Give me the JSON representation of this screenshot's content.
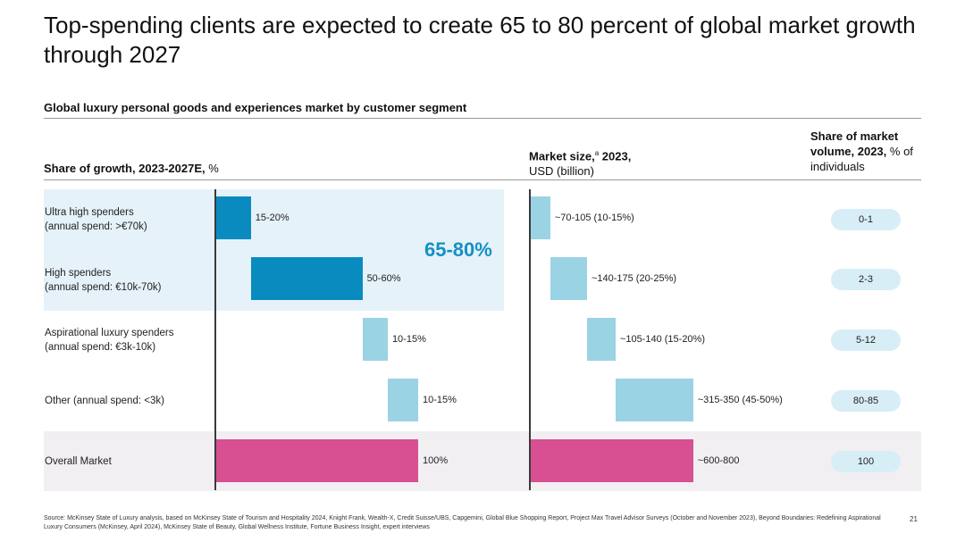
{
  "title": "Top-spending clients are expected to create 65 to 80 percent of global market growth through 2027",
  "chart_data": {
    "type": "bar",
    "title": "Global luxury personal goods and experiences market by customer segment",
    "columns": {
      "growth": {
        "label_bold": "Share of growth, 2023-2027E,",
        "label_rest": " %"
      },
      "market": {
        "label_bold": "Market size,",
        "label_sup": "a",
        "label_bold2": " 2023,",
        "label_rest": "USD (billion)"
      },
      "volume": {
        "label_bold": "Share of market volume, 2023,",
        "label_rest": " % of individuals"
      }
    },
    "highlight_label": "65-80%",
    "categories": [
      {
        "line1": "Ultra high spenders",
        "line2": "(annual spend: >€70k)"
      },
      {
        "line1": "High spenders",
        "line2": "(annual spend: €10k-70k)"
      },
      {
        "line1": "Aspirational luxury spenders",
        "line2": "(annual spend: €3k-10k)"
      },
      {
        "line1": "Other (annual spend: <3k)",
        "line2": ""
      },
      {
        "line1": "Overall Market",
        "line2": ""
      }
    ],
    "series": [
      {
        "name": "Share of growth",
        "type": "waterfall",
        "ranges": [
          [
            0,
            17.5
          ],
          [
            17.5,
            72.5
          ],
          [
            72.5,
            85
          ],
          [
            85,
            100
          ],
          [
            0,
            100
          ]
        ],
        "labels": [
          "15-20%",
          "50-60%",
          "10-15%",
          "10-15%",
          "100%"
        ]
      },
      {
        "name": "Market size",
        "type": "waterfall",
        "ranges": [
          [
            0,
            87.5
          ],
          [
            87.5,
            245
          ],
          [
            245,
            367.5
          ],
          [
            367.5,
            700
          ],
          [
            0,
            700
          ]
        ],
        "labels": [
          "~70-105 (10-15%)",
          "~140-175 (20-25%)",
          "~105-140 (15-20%)",
          "~315-350 (45-50%)",
          "~600-800"
        ]
      },
      {
        "name": "Share of market volume",
        "type": "table",
        "labels": [
          "0-1",
          "2-3",
          "5-12",
          "80-85",
          "100"
        ]
      }
    ]
  },
  "colors": {
    "dark_blue": "#0a8bc0",
    "light_blue": "#9ad3e3",
    "pink": "#d84f92",
    "band_blue": "#e5f2f9",
    "band_grey": "#f1eff2",
    "highlight_text": "#1590c4"
  },
  "footer": "Source: McKinsey State of Luxury analysis, based on McKinsey State of Tourism and Hospitality 2024, Knight Frank, Wealth-X, Credit Suisse/UBS, Capgemini, Global Blue Shopping Report, Project Max Travel Advisor Surveys (October and November 2023), Beyond Boundaries: Redefining Aspirational Luxury Consumers (McKinsey, April 2024), McKinsey State of Beauty, Global Wellness Institute, Fortune Business Insight, expert interviews",
  "page_number": "21"
}
